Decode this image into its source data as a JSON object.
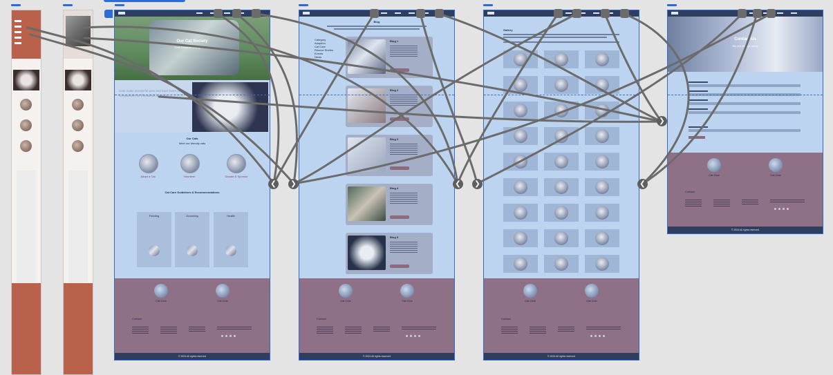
{
  "canvas": {
    "background": "#e4e4e4",
    "wire_color": "#6b6b6b",
    "selection_color": "#2d6bd8"
  },
  "mobile_boards": [
    {
      "id": "mobile-1",
      "accent": "#b9614a"
    },
    {
      "id": "mobile-2",
      "accent": "#b9614a"
    }
  ],
  "home": {
    "hero_title": "Our Cat Society",
    "hero_subtitle": "Cats Deserve Loving Homes",
    "intro_text": "Cats make wonderful pets and have been our companions for thousands of years.",
    "section1_title": "Our Cats",
    "section1_sub": "Meet our friendly cats",
    "avatars": [
      "Adopt a Cat",
      "Volunteer",
      "Donate & Sponsor"
    ],
    "section2_title": "Cat Care Guidelines & Recommendations",
    "cards": [
      "Feeding",
      "Grooming",
      "Health"
    ]
  },
  "blog": {
    "page_title": "Blog",
    "side_list": [
      "Category",
      "Adoption",
      "Cat Care",
      "Rescue Stories",
      "Events",
      "News"
    ],
    "posts": [
      {
        "title": "Blog 1"
      },
      {
        "title": "Blog 2"
      },
      {
        "title": "Blog 3"
      },
      {
        "title": "Blog 4"
      },
      {
        "title": "Blog 5"
      }
    ]
  },
  "gallery": {
    "page_title": "Gallery"
  },
  "contact": {
    "hero_title": "Contact Us",
    "hero_subtitle": "We are always ready"
  },
  "footer": {
    "names": [
      "Cat Club",
      "Cat Club"
    ],
    "heading": "Contact",
    "copyright": "© 2024 All rights reserved"
  },
  "icons": {
    "arrow_left": "❮",
    "arrow_right": "❯"
  }
}
